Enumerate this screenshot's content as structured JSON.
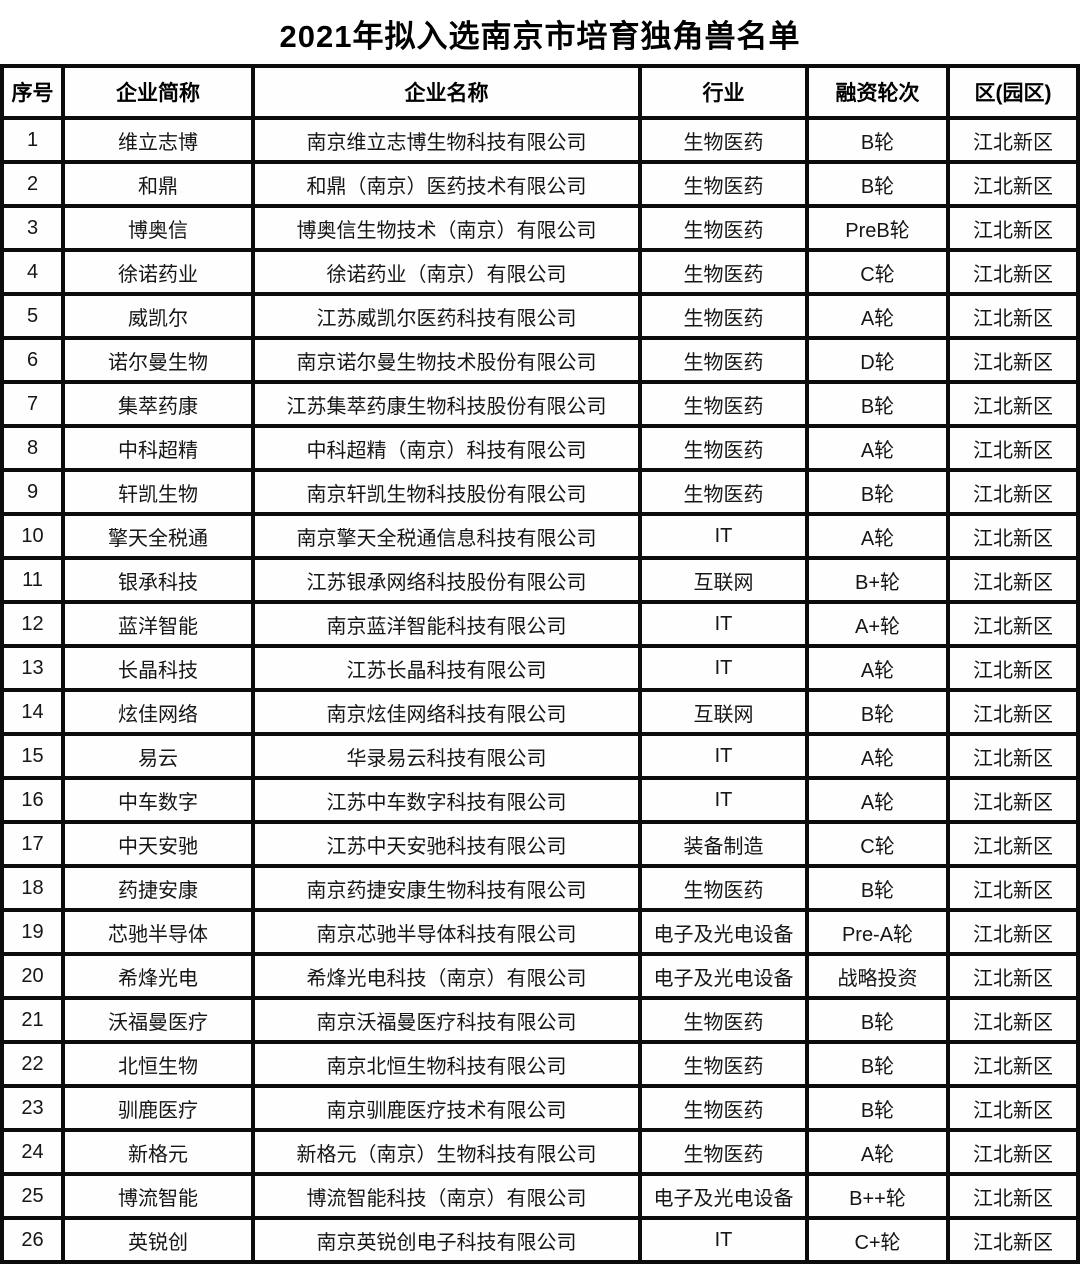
{
  "title": "2021年拟入选南京市培育独角兽名单",
  "table": {
    "headers": [
      "序号",
      "企业简称",
      "企业名称",
      "行业",
      "融资轮次",
      "区(园区)"
    ],
    "rows": [
      [
        "1",
        "维立志博",
        "南京维立志博生物科技有限公司",
        "生物医药",
        "B轮",
        "江北新区"
      ],
      [
        "2",
        "和鼎",
        "和鼎（南京）医药技术有限公司",
        "生物医药",
        "B轮",
        "江北新区"
      ],
      [
        "3",
        "博奥信",
        "博奥信生物技术（南京）有限公司",
        "生物医药",
        "PreB轮",
        "江北新区"
      ],
      [
        "4",
        "徐诺药业",
        "徐诺药业（南京）有限公司",
        "生物医药",
        "C轮",
        "江北新区"
      ],
      [
        "5",
        "威凯尔",
        "江苏威凯尔医药科技有限公司",
        "生物医药",
        "A轮",
        "江北新区"
      ],
      [
        "6",
        "诺尔曼生物",
        "南京诺尔曼生物技术股份有限公司",
        "生物医药",
        "D轮",
        "江北新区"
      ],
      [
        "7",
        "集萃药康",
        "江苏集萃药康生物科技股份有限公司",
        "生物医药",
        "B轮",
        "江北新区"
      ],
      [
        "8",
        "中科超精",
        "中科超精（南京）科技有限公司",
        "生物医药",
        "A轮",
        "江北新区"
      ],
      [
        "9",
        "轩凯生物",
        "南京轩凯生物科技股份有限公司",
        "生物医药",
        "B轮",
        "江北新区"
      ],
      [
        "10",
        "擎天全税通",
        "南京擎天全税通信息科技有限公司",
        "IT",
        "A轮",
        "江北新区"
      ],
      [
        "11",
        "银承科技",
        "江苏银承网络科技股份有限公司",
        "互联网",
        "B+轮",
        "江北新区"
      ],
      [
        "12",
        "蓝洋智能",
        "南京蓝洋智能科技有限公司",
        "IT",
        "A+轮",
        "江北新区"
      ],
      [
        "13",
        "长晶科技",
        "江苏长晶科技有限公司",
        "IT",
        "A轮",
        "江北新区"
      ],
      [
        "14",
        "炫佳网络",
        "南京炫佳网络科技有限公司",
        "互联网",
        "B轮",
        "江北新区"
      ],
      [
        "15",
        "易云",
        "华录易云科技有限公司",
        "IT",
        "A轮",
        "江北新区"
      ],
      [
        "16",
        "中车数字",
        "江苏中车数字科技有限公司",
        "IT",
        "A轮",
        "江北新区"
      ],
      [
        "17",
        "中天安驰",
        "江苏中天安驰科技有限公司",
        "装备制造",
        "C轮",
        "江北新区"
      ],
      [
        "18",
        "药捷安康",
        "南京药捷安康生物科技有限公司",
        "生物医药",
        "B轮",
        "江北新区"
      ],
      [
        "19",
        "芯驰半导体",
        "南京芯驰半导体科技有限公司",
        "电子及光电设备",
        "Pre-A轮",
        "江北新区"
      ],
      [
        "20",
        "希烽光电",
        "希烽光电科技（南京）有限公司",
        "电子及光电设备",
        "战略投资",
        "江北新区"
      ],
      [
        "21",
        "沃福曼医疗",
        "南京沃福曼医疗科技有限公司",
        "生物医药",
        "B轮",
        "江北新区"
      ],
      [
        "22",
        "北恒生物",
        "南京北恒生物科技有限公司",
        "生物医药",
        "B轮",
        "江北新区"
      ],
      [
        "23",
        "驯鹿医疗",
        "南京驯鹿医疗技术有限公司",
        "生物医药",
        "B轮",
        "江北新区"
      ],
      [
        "24",
        "新格元",
        "新格元（南京）生物科技有限公司",
        "生物医药",
        "A轮",
        "江北新区"
      ],
      [
        "25",
        "博流智能",
        "博流智能科技（南京）有限公司",
        "电子及光电设备",
        "B++轮",
        "江北新区"
      ],
      [
        "26",
        "英锐创",
        "南京英锐创电子科技有限公司",
        "IT",
        "C+轮",
        "江北新区"
      ]
    ]
  }
}
